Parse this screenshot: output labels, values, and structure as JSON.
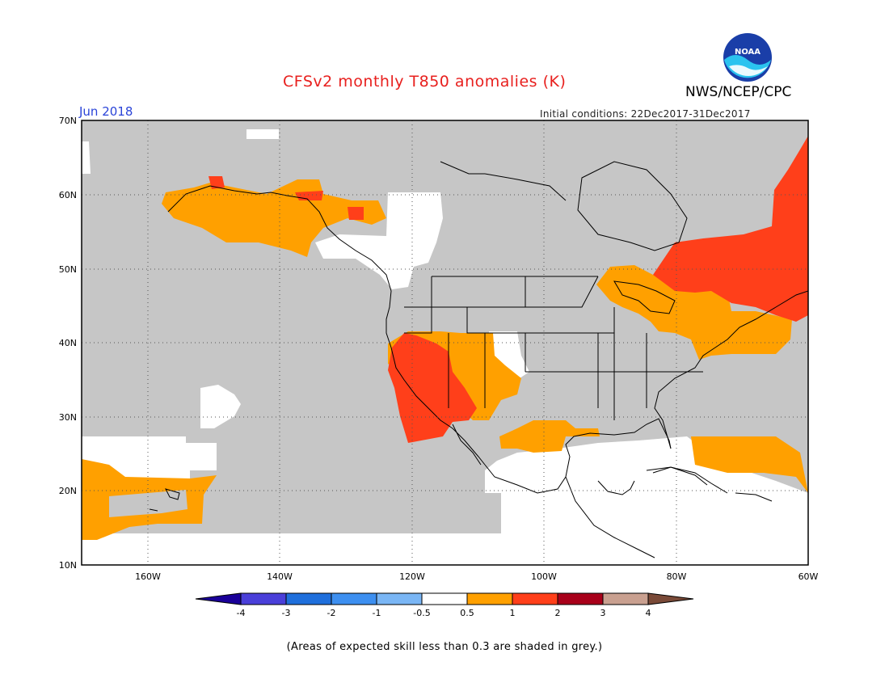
{
  "header": {
    "title": "CFSv2 monthly T850 anomalies (K)",
    "agency": "NWS/NCEP/CPC",
    "month": "Jun 2018",
    "initial_conditions": "Initial conditions: 22Dec2017-31Dec2017"
  },
  "logo": {
    "text": "NOAA",
    "icon": "noaa-logo-icon"
  },
  "map": {
    "lat_labels": [
      "70N",
      "60N",
      "50N",
      "40N",
      "30N",
      "20N",
      "10N"
    ],
    "lon_labels": [
      "160W",
      "140W",
      "120W",
      "100W",
      "80W",
      "60W"
    ],
    "lat_values": [
      70,
      60,
      50,
      40,
      30,
      20,
      10
    ],
    "lon_values": [
      -160,
      -140,
      -120,
      -100,
      -80,
      -60
    ],
    "colors": {
      "low_skill_grey": "#c6c6c6",
      "near_zero": "#ffffff",
      "anom_0_5_to_1": "#ffa000",
      "anom_1_to_2": "#ff3f1a",
      "coast": "#000000"
    }
  },
  "colorbar": {
    "tick_labels": [
      "-4",
      "-3",
      "-2",
      "-1",
      "-0.5",
      "0.5",
      "1",
      "2",
      "3",
      "4"
    ],
    "colors": [
      "#1a0099",
      "#4a3fd9",
      "#1f6fdc",
      "#3d8ff0",
      "#7ab6f5",
      "#ffffff",
      "#ffa000",
      "#ff3f1a",
      "#a8001a",
      "#c9a090",
      "#7a4a38"
    ]
  },
  "footnote": "(Areas of expected skill less than 0.3 are shaded in grey.)"
}
